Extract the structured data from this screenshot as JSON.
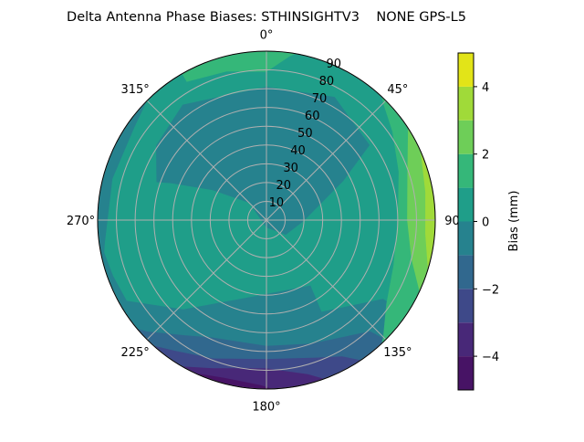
{
  "chart_data": {
    "type": "polar-contour",
    "title": "Delta Antenna Phase Biases: STHINSIGHTV3    NONE GPS-L5",
    "angular_ticks": [
      {
        "az": 0,
        "label": "0°"
      },
      {
        "az": 45,
        "label": "45°"
      },
      {
        "az": 90,
        "label": "90"
      },
      {
        "az": 135,
        "label": "135°"
      },
      {
        "az": 180,
        "label": "180°"
      },
      {
        "az": 225,
        "label": "225°"
      },
      {
        "az": 270,
        "label": "270°"
      },
      {
        "az": 315,
        "label": "315°"
      }
    ],
    "radial_ticks": [
      10,
      20,
      30,
      40,
      50,
      60,
      70,
      80,
      90
    ],
    "radial_labels": [
      "10",
      "20",
      "30",
      "40",
      "50",
      "60",
      "70",
      "80",
      "90"
    ],
    "rlim": [
      0,
      90
    ],
    "theta_zero": "north",
    "theta_direction": "clockwise",
    "grid": true,
    "colormap": "viridis",
    "levels": [
      -5,
      -4,
      -3,
      -2,
      -1,
      0,
      1,
      2,
      3,
      4,
      5
    ],
    "level_colors": [
      "#471365",
      "#482878",
      "#3e4989",
      "#31688e",
      "#26828e",
      "#1f9e89",
      "#35b779",
      "#6ece58",
      "#a0da39",
      "#e2e418"
    ],
    "colorbar": {
      "label": "Bias (mm)",
      "ticks": [
        -4,
        -2,
        0,
        2,
        4
      ],
      "tick_labels": [
        "−4",
        "−2",
        "0",
        "2",
        "4"
      ],
      "range": [
        -5,
        5
      ]
    },
    "background_level": [
      0,
      1
    ],
    "regions": [
      {
        "level": [
          -1,
          0
        ],
        "edge": false,
        "points": [
          [
            289,
            62
          ],
          [
            304,
            71
          ],
          [
            324,
            76
          ],
          [
            0,
            71
          ],
          [
            29,
            75
          ],
          [
            54,
            68
          ],
          [
            63,
            46
          ],
          [
            91,
            20
          ],
          [
            127,
            13
          ],
          [
            180,
            4
          ],
          [
            315,
            13
          ],
          [
            299,
            33
          ],
          [
            291,
            55
          ]
        ]
      },
      {
        "level": [
          -1,
          0
        ],
        "edge": true,
        "points": [
          [
            264,
            90
          ],
          [
            250,
            87
          ],
          [
            240,
            86
          ],
          [
            223,
            65
          ],
          [
            184,
            40
          ],
          [
            146,
            42
          ],
          [
            149,
            57
          ],
          [
            124,
            75
          ],
          [
            124,
            90
          ]
        ]
      },
      {
        "level": [
          -1,
          0
        ],
        "edge": true,
        "points": [
          [
            315,
            90
          ],
          [
            305,
            86
          ],
          [
            285,
            85
          ],
          [
            262,
            87
          ],
          [
            255,
            90
          ]
        ]
      },
      {
        "level": [
          -2,
          -1
        ],
        "edge": true,
        "points": [
          [
            230,
            90
          ],
          [
            227,
            87
          ],
          [
            215,
            75
          ],
          [
            205,
            69
          ],
          [
            180,
            67
          ],
          [
            160,
            70
          ],
          [
            137,
            81
          ],
          [
            135,
            90
          ]
        ]
      },
      {
        "level": [
          -3,
          -2
        ],
        "edge": true,
        "points": [
          [
            222,
            90
          ],
          [
            215,
            85
          ],
          [
            201,
            79
          ],
          [
            180,
            74
          ],
          [
            160,
            78
          ],
          [
            151,
            83
          ],
          [
            146,
            90
          ]
        ]
      },
      {
        "level": [
          -4,
          -3
        ],
        "edge": true,
        "points": [
          [
            210,
            90
          ],
          [
            200,
            84
          ],
          [
            180,
            79
          ],
          [
            165,
            85
          ],
          [
            160,
            90
          ]
        ]
      },
      {
        "level": [
          -5,
          -4
        ],
        "edge": true,
        "points": [
          [
            205,
            90
          ],
          [
            195,
            87
          ],
          [
            182,
            88
          ],
          [
            178,
            90
          ]
        ]
      },
      {
        "level": [
          1,
          2
        ],
        "edge": true,
        "points": [
          [
            330,
            90
          ],
          [
            330,
            85
          ],
          [
            345,
            82
          ],
          [
            0,
            79
          ],
          [
            8,
            88
          ],
          [
            10,
            90
          ]
        ]
      },
      {
        "level": [
          1,
          2
        ],
        "edge": true,
        "points": [
          [
            43,
            90
          ],
          [
            45,
            88
          ],
          [
            55,
            82
          ],
          [
            70,
            75
          ],
          [
            90,
            70
          ],
          [
            110,
            72
          ],
          [
            125,
            78
          ],
          [
            135,
            88
          ],
          [
            137,
            90
          ]
        ]
      },
      {
        "level": [
          2,
          3
        ],
        "edge": true,
        "points": [
          [
            57,
            90
          ],
          [
            70,
            80
          ],
          [
            90,
            75
          ],
          [
            105,
            80
          ],
          [
            115,
            90
          ]
        ]
      },
      {
        "level": [
          3,
          4
        ],
        "edge": true,
        "points": [
          [
            66,
            90
          ],
          [
            80,
            86
          ],
          [
            95,
            85
          ],
          [
            107,
            90
          ]
        ]
      }
    ]
  }
}
